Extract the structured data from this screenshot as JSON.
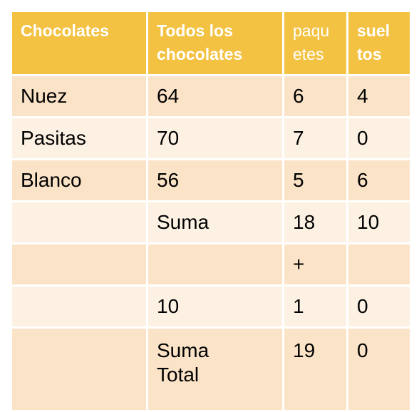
{
  "header": {
    "col1": "Chocolates",
    "col2": "Todos los chocolates",
    "col3": "paquetes",
    "col4": "sueltos"
  },
  "rows": [
    {
      "name": "Nuez",
      "total": "64",
      "paquetes": "6",
      "sueltos": "4"
    },
    {
      "name": "Pasitas",
      "total": "70",
      "paquetes": "7",
      "sueltos": "0"
    },
    {
      "name": "Blanco",
      "total": "56",
      "paquetes": "5",
      "sueltos": "6"
    }
  ],
  "suma": {
    "label": "Suma",
    "paquetes": "18",
    "sueltos": "10"
  },
  "plus": "+",
  "carry": {
    "total": "10",
    "paquetes": "1",
    "sueltos": "0"
  },
  "suma_total": {
    "label": "Suma Total",
    "paquetes": "19",
    "sueltos": "0"
  },
  "colors": {
    "header_bg": "#f4c242",
    "row_dark": "#fae3c6",
    "row_light": "#fcf1e3",
    "red": "#e23b2a",
    "blue": "#2f6fb8"
  }
}
